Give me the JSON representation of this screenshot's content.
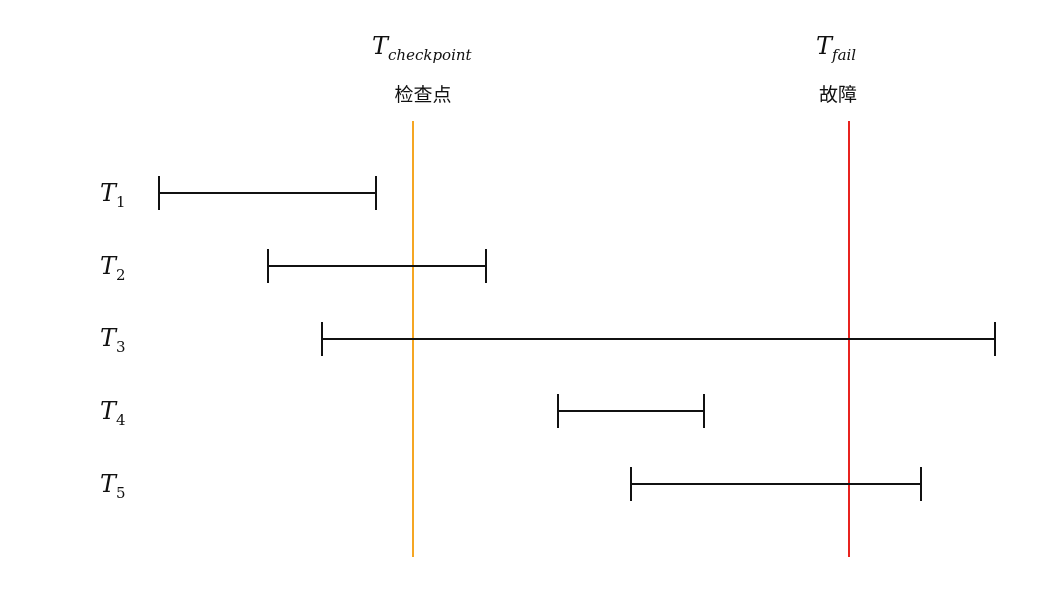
{
  "markers": [
    {
      "symbol": "T",
      "subscript": "checkpoint",
      "caption": "检查点",
      "color": "#f5a623"
    },
    {
      "symbol": "T",
      "subscript": "fail",
      "caption": "故障",
      "color": "#e8231f"
    }
  ],
  "transactions": [
    {
      "symbol": "T",
      "subscript": "1"
    },
    {
      "symbol": "T",
      "subscript": "2"
    },
    {
      "symbol": "T",
      "subscript": "3"
    },
    {
      "symbol": "T",
      "subscript": "4"
    },
    {
      "symbol": "T",
      "subscript": "5"
    }
  ],
  "line_color": "#111111"
}
